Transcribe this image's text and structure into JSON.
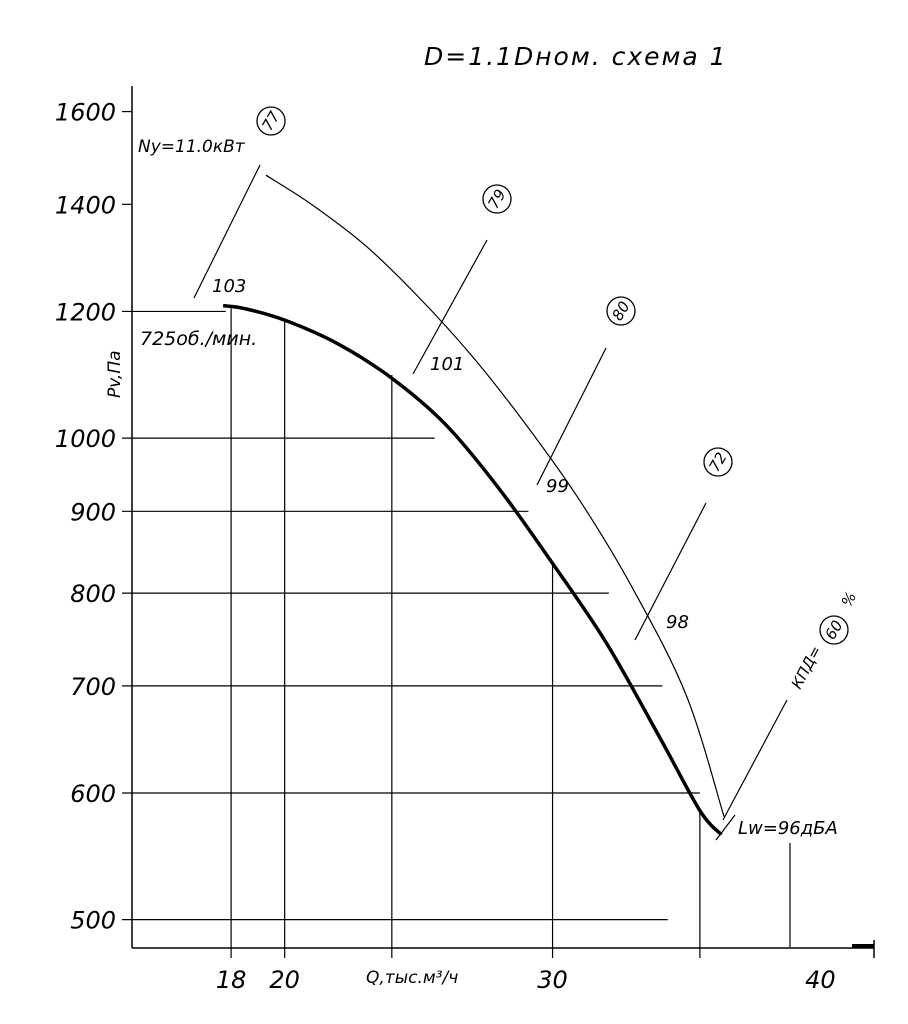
{
  "chart_data": {
    "type": "line",
    "title": "D=1.1Dном. схема 1",
    "xlabel": "Q,тыс.м³/ч",
    "ylabel": "Pv,Па",
    "x_ticks": [
      18,
      20,
      30,
      40
    ],
    "x_tick_labels": [
      "18",
      "20",
      "30",
      "40"
    ],
    "y_ticks": [
      500,
      600,
      700,
      800,
      900,
      1000,
      1200,
      1400,
      1600
    ],
    "y_tick_labels": [
      "500",
      "600",
      "700",
      "800",
      "900",
      "1000",
      "1200",
      "1400",
      "1600"
    ],
    "xlim": [
      14.3,
      42.0
    ],
    "ylim": [
      480,
      1660
    ],
    "y_scale": "log",
    "series": [
      {
        "role": "pressure curve",
        "x": [
          17.7,
          18.5,
          20.0,
          22.0,
          24.0,
          26.0,
          28.0,
          30.0,
          32.0,
          34.0,
          35.5,
          36.3
        ],
        "y": [
          1210,
          1205,
          1185,
          1145,
          1090,
          1020,
          930,
          835,
          745,
          650,
          585,
          565
        ]
      },
      {
        "role": "efficiency envelope curve",
        "x": [
          19.3,
          21.0,
          23.0,
          25.0,
          27.0,
          29.0,
          31.0,
          33.0,
          35.0,
          36.4
        ],
        "y": [
          1460,
          1400,
          1320,
          1225,
          1125,
          1020,
          915,
          805,
          690,
          580
        ]
      }
    ],
    "power_label": "Ny=11.0кВт",
    "speed_label": "725об./мин.",
    "noise_label": "Lw=96дБА",
    "efficiency_label": "КПД=",
    "efficiency_unit": "%",
    "noise_points": [
      {
        "label": "103",
        "x": 17.8,
        "y": 1210
      },
      {
        "label": "101",
        "x": 24.0,
        "y": 1095
      },
      {
        "label": "99",
        "x": 29.1,
        "y": 930
      },
      {
        "label": "98",
        "x": 33.2,
        "y": 760
      }
    ],
    "efficiency_circles": [
      {
        "value": "77"
      },
      {
        "value": "79"
      },
      {
        "value": "80"
      },
      {
        "value": "72"
      },
      {
        "value": "60"
      }
    ]
  }
}
